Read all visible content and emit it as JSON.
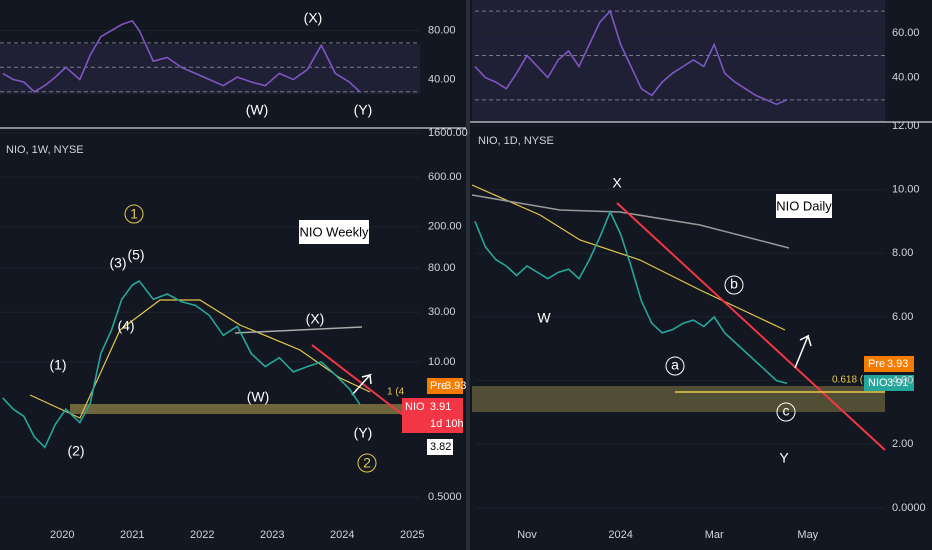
{
  "chart_data": [
    {
      "type": "line",
      "title": "NIO, 1W, NYSE",
      "log_scale": true,
      "color": "#26a69a",
      "x": [
        2019.15,
        2019.3,
        2019.45,
        2019.6,
        2019.75,
        2019.9,
        2020.05,
        2020.25,
        2020.4,
        2020.55,
        2020.7,
        2020.85,
        2021.0,
        2021.1,
        2021.3,
        2021.5,
        2021.7,
        2021.9,
        2022.1,
        2022.3,
        2022.5,
        2022.7,
        2022.9,
        2023.1,
        2023.3,
        2023.5,
        2023.7,
        2023.9,
        2024.1,
        2024.25
      ],
      "values": [
        4.5,
        3.5,
        3.0,
        1.9,
        1.5,
        2.5,
        3.5,
        2.6,
        4,
        12,
        20,
        40,
        55,
        60,
        40,
        45,
        38,
        35,
        28,
        18,
        22,
        12,
        9,
        11,
        8,
        9,
        10,
        7.5,
        5.5,
        3.91
      ],
      "xlim": [
        2019.11,
        2025.11
      ],
      "xticks": [
        2020,
        2021,
        2022,
        2023,
        2024,
        2025
      ],
      "ylim": [
        0.3,
        1786
      ],
      "yticks": [
        {
          "value": 1600,
          "label": "1600.00"
        },
        {
          "value": 600,
          "label": "600.00"
        },
        {
          "value": 200,
          "label": "200.00"
        },
        {
          "value": 80,
          "label": "80.00"
        },
        {
          "value": 30,
          "label": "30.00"
        },
        {
          "value": 10,
          "label": "10.00"
        },
        {
          "value": 0.5,
          "label": "0.5000"
        }
      ],
      "annotations": [
        "(1)",
        "(2)",
        "(3)",
        "(5)",
        "(4)",
        "(X)",
        "(W)",
        "(Y)",
        "1",
        "2",
        "NIO Weekly",
        "1 (4"
      ],
      "tags": [
        "Pre",
        "3.93",
        "NIO",
        "3.91",
        "1d 10h",
        "3.82"
      ]
    },
    {
      "type": "line",
      "color": "#7e57c2",
      "x": [
        2019.15,
        2019.3,
        2019.45,
        2019.6,
        2019.75,
        2019.9,
        2020.05,
        2020.25,
        2020.4,
        2020.55,
        2020.7,
        2020.85,
        2021.0,
        2021.1,
        2021.3,
        2021.5,
        2021.7,
        2021.9,
        2022.1,
        2022.3,
        2022.5,
        2022.7,
        2022.9,
        2023.1,
        2023.3,
        2023.5,
        2023.7,
        2023.9,
        2024.1,
        2024.25
      ],
      "values": [
        45,
        40,
        38,
        30,
        35,
        42,
        50,
        40,
        60,
        75,
        80,
        85,
        88,
        80,
        55,
        58,
        50,
        45,
        40,
        35,
        42,
        38,
        35,
        45,
        40,
        48,
        68,
        45,
        38,
        30
      ],
      "xlim": [
        2019.11,
        2025.11
      ],
      "ylim": [
        2,
        105
      ],
      "yticks": [
        {
          "value": 80,
          "label": "80.00"
        },
        {
          "value": 40,
          "label": "40.00"
        }
      ],
      "bands": [
        70,
        50,
        30
      ],
      "annotations": [
        "(X)",
        "(W)",
        "(Y)"
      ]
    },
    {
      "type": "line",
      "title": "NIO, 1D, NYSE",
      "color": "#26a69a",
      "categories": [
        null,
        null,
        null,
        null,
        null,
        "Nov",
        null,
        null,
        null,
        null,
        null,
        null,
        null,
        null,
        "2024",
        null,
        null,
        null,
        null,
        null,
        null,
        null,
        null,
        "Mar",
        null,
        null,
        null,
        null,
        null,
        null,
        null,
        null,
        "May",
        null,
        null,
        null,
        null
      ],
      "values": [
        9.0,
        8.2,
        7.8,
        7.6,
        7.3,
        7.6,
        7.4,
        7.2,
        7.4,
        7.5,
        7.2,
        7.8,
        8.5,
        9.3,
        8.6,
        7.6,
        6.5,
        5.8,
        5.5,
        5.6,
        5.8,
        5.9,
        5.7,
        6.0,
        5.5,
        5.2,
        4.9,
        4.6,
        4.3,
        4.0,
        3.91,
        null,
        null,
        null,
        null,
        null,
        null
      ],
      "ylim": [
        -0.38,
        12.06
      ],
      "yticks": [
        {
          "value": 12,
          "label": "12.00"
        },
        {
          "value": 10,
          "label": "10.00"
        },
        {
          "value": 8,
          "label": "8.00"
        },
        {
          "value": 6,
          "label": "6.00"
        },
        {
          "value": 4,
          "label": "4.00"
        },
        {
          "value": 2,
          "label": "2.00"
        },
        {
          "value": 0,
          "label": "0.0000"
        }
      ],
      "annotations": [
        "X",
        "W",
        "a",
        "b",
        "c",
        "Y",
        "NIO Daily",
        "0.618 (3"
      ],
      "tags": [
        "Pre",
        "3.93",
        "NIO",
        "3.91"
      ]
    },
    {
      "type": "line",
      "color": "#7e57c2",
      "categories": [
        null,
        null,
        null,
        null,
        null,
        "Nov",
        null,
        null,
        null,
        null,
        null,
        null,
        null,
        null,
        "2024",
        null,
        null,
        null,
        null,
        null,
        null,
        null,
        null,
        "Mar",
        null,
        null,
        null,
        null,
        null,
        null,
        null,
        null,
        "May",
        null,
        null,
        null,
        null
      ],
      "values": [
        45,
        40,
        38,
        35,
        42,
        50,
        45,
        40,
        48,
        52,
        45,
        55,
        65,
        70,
        55,
        45,
        35,
        32,
        38,
        42,
        45,
        48,
        45,
        55,
        42,
        38,
        35,
        32,
        30,
        28,
        30,
        null,
        null,
        null,
        null,
        null,
        null
      ],
      "ylim": [
        20,
        75
      ],
      "yticks": [
        {
          "value": 60,
          "label": "60.00"
        },
        {
          "value": 40,
          "label": "40.00"
        }
      ],
      "bands": [
        70,
        50,
        30
      ]
    }
  ]
}
